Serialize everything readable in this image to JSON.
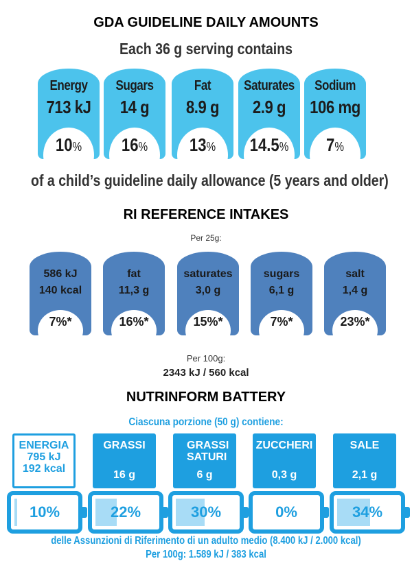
{
  "gda": {
    "title": "GDA GUIDELINE DAILY AMOUNTS",
    "serving": "Each 36 g serving contains",
    "color": "#4cc3ec",
    "items": [
      {
        "label": "Energy",
        "value": "713 kJ",
        "pct": "10",
        "unit": "%"
      },
      {
        "label": "Sugars",
        "value": "14 g",
        "pct": "16",
        "unit": "%"
      },
      {
        "label": "Fat",
        "value": "8.9 g",
        "pct": "13",
        "unit": "%"
      },
      {
        "label": "Saturates",
        "value": "2.9 g",
        "pct": "14.5",
        "unit": "%"
      },
      {
        "label": "Sodium",
        "value": "106 mg",
        "pct": "7",
        "unit": "%"
      }
    ],
    "footer": "of a child’s guideline daily allowance (5 years and older)"
  },
  "ri": {
    "title": "RI REFERENCE INTAKES",
    "per": "Per 25g:",
    "color": "#4f81bd",
    "items": [
      {
        "line1": "586 kJ",
        "line2": "140 kcal",
        "pct": "7%*"
      },
      {
        "line1": "fat",
        "line2": "11,3 g",
        "pct": "16%*"
      },
      {
        "line1": "saturates",
        "line2": "3,0 g",
        "pct": "15%*"
      },
      {
        "line1": "sugars",
        "line2": "6,1 g",
        "pct": "7%*"
      },
      {
        "line1": "salt",
        "line2": "1,4 g",
        "pct": "23%*"
      }
    ],
    "per100_label": "Per 100g:",
    "per100_value": "2343 kJ / 560 kcal"
  },
  "nutrinform": {
    "title": "NUTRINFORM BATTERY",
    "portion": "Ciascuna porzione (50 g) contiene:",
    "color": "#1e9fe0",
    "items": [
      {
        "label": "ENERGIA",
        "line2": "795 kJ",
        "line3": "192 kcal",
        "pct": "10%",
        "fill": 10
      },
      {
        "label": "GRASSI",
        "qty": "16 g",
        "pct": "22%",
        "fill": 22
      },
      {
        "label": "GRASSI SATURI",
        "qty": "6 g",
        "pct": "30%",
        "fill": 30
      },
      {
        "label": "ZUCCHERI",
        "qty": "0,3 g",
        "pct": "0%",
        "fill": 0
      },
      {
        "label": "SALE",
        "qty": "2,1 g",
        "pct": "34%",
        "fill": 34
      }
    ],
    "footer1": "delle Assunzioni di Riferimento di un adulto medio (8.400 kJ / 2.000 kcal)",
    "footer2": "Per 100g: 1.589 kJ / 383 kcal"
  }
}
